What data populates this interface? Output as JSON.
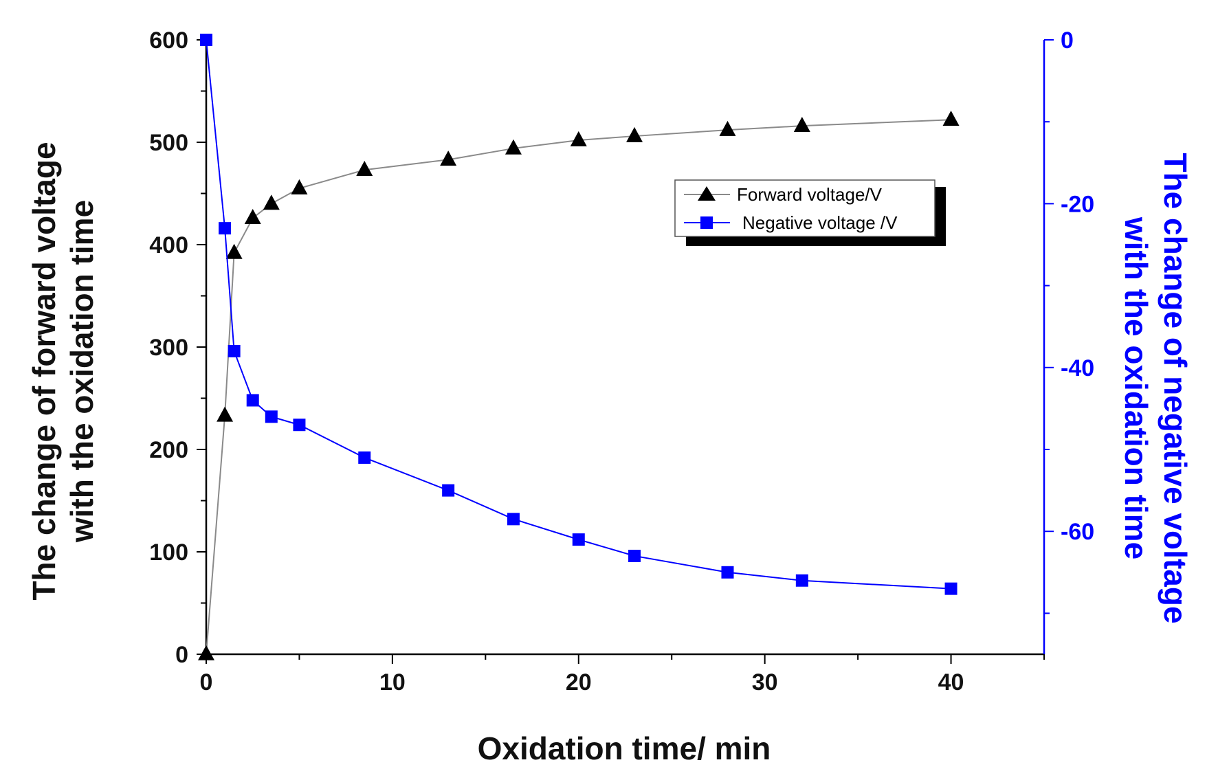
{
  "chart_data": {
    "type": "line",
    "xlabel": "Oxidation time/ min",
    "ylabel_left": [
      "The change of forward voltage",
      "with the oxidation time"
    ],
    "ylabel_right": [
      "The change of negative voltage",
      "with the oxidation time"
    ],
    "xlim": [
      0,
      45
    ],
    "ylim_left": [
      0,
      600
    ],
    "ylim_right": [
      -75,
      0
    ],
    "xticks": [
      0,
      10,
      20,
      30,
      40
    ],
    "yticks_left": [
      0,
      100,
      200,
      300,
      400,
      500,
      600
    ],
    "yticks_right": [
      0,
      -20,
      -40,
      -60
    ],
    "x": [
      0,
      1,
      1.5,
      2.5,
      3.5,
      5,
      8.5,
      13,
      16.5,
      20,
      23,
      28,
      32,
      40
    ],
    "series": [
      {
        "name": "Forward voltage/V",
        "axis": "left",
        "marker": "triangle",
        "color": "#000000",
        "line_color": "#8a8a8a",
        "values": [
          0,
          233,
          392,
          426,
          440,
          455,
          473,
          483,
          494,
          502,
          506,
          512,
          516,
          522
        ]
      },
      {
        "name": "Negative voltage /V",
        "axis": "right",
        "marker": "square",
        "color": "#0000ff",
        "line_color": "#0000ff",
        "values": [
          0,
          -23,
          -38,
          -44,
          -46,
          -47,
          -51,
          -55,
          -58.5,
          -61,
          -63,
          -65,
          -66,
          -67
        ]
      }
    ],
    "legend": {
      "position": "upper-center-right"
    }
  }
}
